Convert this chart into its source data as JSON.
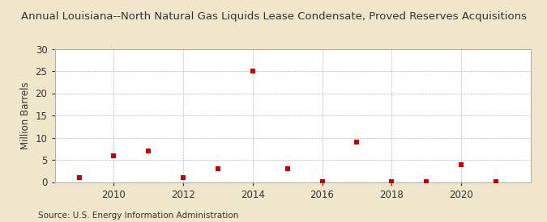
{
  "title": "Annual Louisiana--North Natural Gas Liquids Lease Condensate, Proved Reserves Acquisitions",
  "ylabel": "Million Barrels",
  "source": "Source: U.S. Energy Information Administration",
  "figure_bg_color": "#f0e6cc",
  "plot_bg_color": "#ffffff",
  "marker_color": "#cc0000",
  "grid_color": "#aaaaaa",
  "spine_color": "#aaaaaa",
  "text_color": "#333333",
  "years": [
    2009,
    2010,
    2011,
    2012,
    2013,
    2014,
    2015,
    2016,
    2017,
    2018,
    2019,
    2020,
    2021
  ],
  "values": [
    1.0,
    6.0,
    7.0,
    1.0,
    3.0,
    25.0,
    3.0,
    0.1,
    9.0,
    0.1,
    0.1,
    4.0,
    0.1
  ],
  "ylim": [
    0,
    30
  ],
  "yticks": [
    0,
    5,
    10,
    15,
    20,
    25,
    30
  ],
  "xlim": [
    2008.3,
    2022.0
  ],
  "xticks": [
    2010,
    2012,
    2014,
    2016,
    2018,
    2020
  ],
  "title_fontsize": 9.5,
  "axis_fontsize": 8.5,
  "source_fontsize": 7.5
}
